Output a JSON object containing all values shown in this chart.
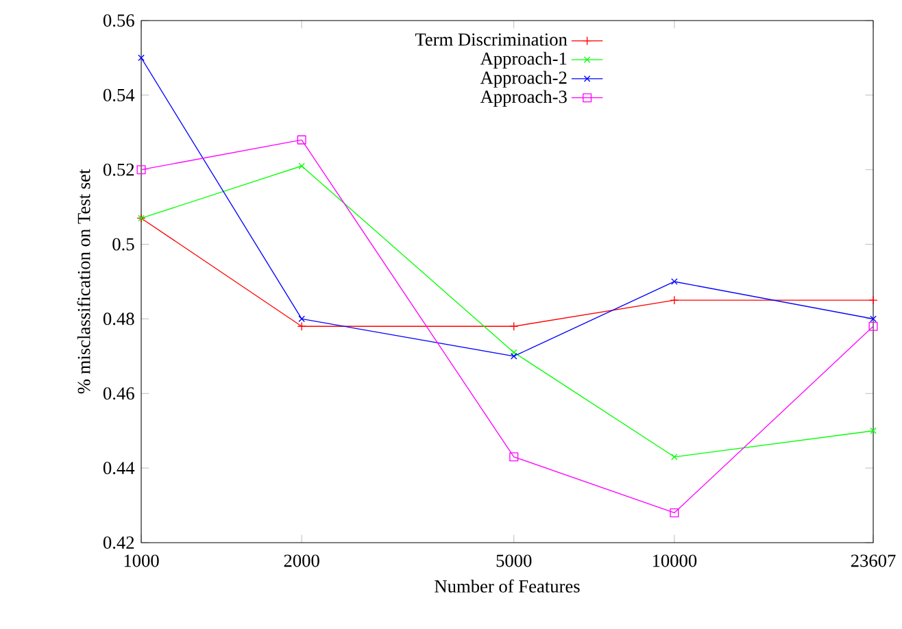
{
  "chart_data": {
    "type": "line",
    "xlabel": "Number of Features",
    "ylabel": "% misclassification on Test set",
    "x": [
      1000,
      2000,
      5000,
      10000,
      23607
    ],
    "log": "x",
    "xlim": [
      1000,
      23607
    ],
    "xticks": [
      1000,
      2000,
      5000,
      10000,
      23607
    ],
    "ylim": [
      0.42,
      0.56
    ],
    "yticks": [
      0.42,
      0.44,
      0.46,
      0.48,
      0.5,
      0.52,
      0.54,
      0.56
    ],
    "grid": false,
    "legend": "top",
    "series": [
      {
        "name": "Term Discrimination",
        "color": "#ff0000",
        "marker": "plus",
        "values": [
          0.507,
          0.478,
          0.478,
          0.485,
          0.485
        ]
      },
      {
        "name": "Approach-1",
        "color": "#00ff00",
        "marker": "cross",
        "values": [
          0.507,
          0.521,
          0.471,
          0.443,
          0.45
        ]
      },
      {
        "name": "Approach-2",
        "color": "#0000ff",
        "marker": "cross",
        "values": [
          0.55,
          0.48,
          0.47,
          0.49,
          0.48
        ]
      },
      {
        "name": "Approach-3",
        "color": "#ff00ff",
        "marker": "square",
        "values": [
          0.52,
          0.528,
          0.443,
          0.428,
          0.478
        ]
      }
    ]
  }
}
